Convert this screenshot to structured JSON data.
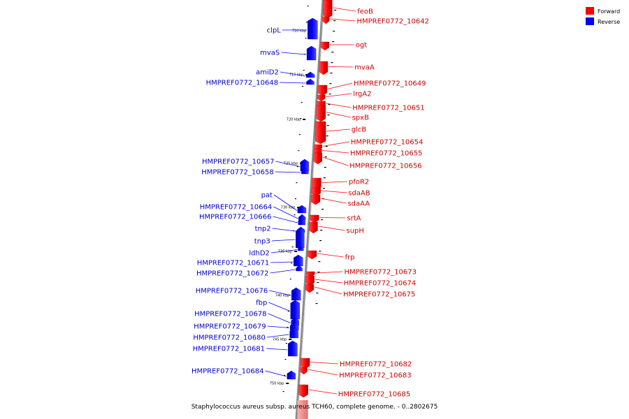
{
  "genome_caption": "Staphylococcus aureus subsp. aureus TCH60, complete genome. - 0..2802675",
  "legend": [
    {
      "label": "Forward",
      "color": "#ff0000"
    },
    {
      "label": "Reverse",
      "color": "#0000ff"
    }
  ],
  "scale_ticks": [
    "710 kbp",
    "715 kbp",
    "720 kbp",
    "725 kbp",
    "730 kbp",
    "735 kbp",
    "740 kbp",
    "745 kbp",
    "750 kbp"
  ],
  "forward_genes": [
    "feoB",
    "HMPREF0772_10642",
    "ogt",
    "mvaA",
    "HMPREF0772_10649",
    "lrgA2",
    "HMPREF0772_10651",
    "spxB",
    "glcB",
    "HMPREF0772_10654",
    "HMPREF0772_10655",
    "HMPREF0772_10656",
    "pfoR2",
    "sdaAB",
    "sdaAA",
    "srtA",
    "supH",
    "frp",
    "HMPREF0772_10673",
    "HMPREF0772_10674",
    "HMPREF0772_10675",
    "HMPREF0772_10682",
    "HMPREF0772_10683",
    "HMPREF0772_10685"
  ],
  "reverse_genes": [
    "clpL",
    "mvaS",
    "amiD2",
    "HMPREF0772_10648",
    "HMPREF0772_10657",
    "HMPREF0772_10658",
    "pat",
    "HMPREF0772_10664",
    "HMPREF0772_10666",
    "tnp2",
    "tnp3",
    "ldhD2",
    "HMPREF0772_10671",
    "HMPREF0772_10672",
    "HMPREF0772_10676",
    "fbp",
    "HMPREF0772_10678",
    "HMPREF0772_10679",
    "HMPREF0772_10680",
    "HMPREF0772_10681",
    "HMPREF0772_10684"
  ],
  "colors": {
    "forward": "#ff0000",
    "reverse": "#0000ff",
    "backbone": "#8c8c8c"
  }
}
